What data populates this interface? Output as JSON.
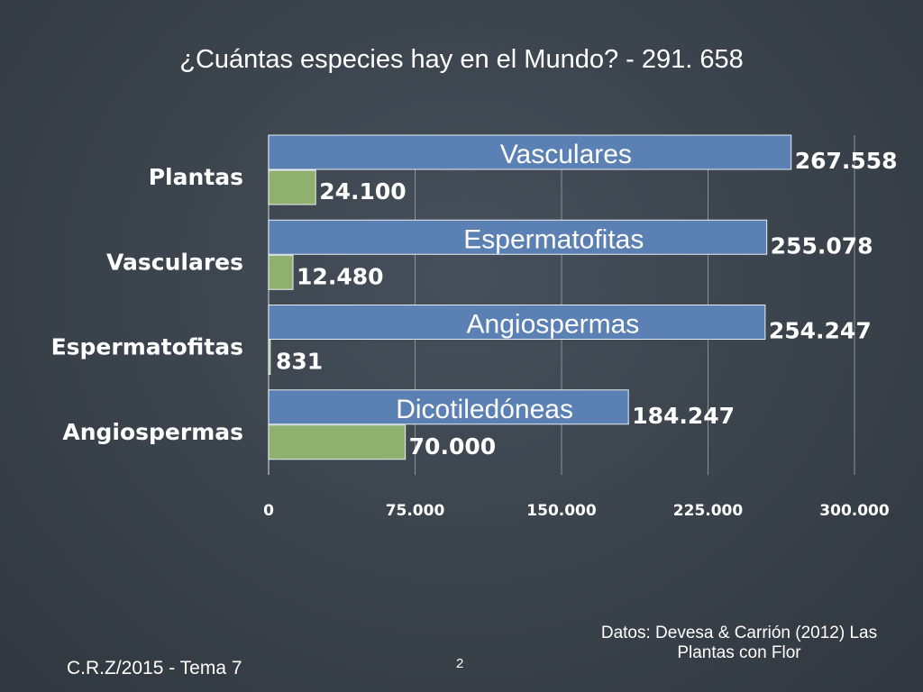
{
  "title": "¿Cuántas especies hay en el Mundo? - 291. 658",
  "footer": {
    "left": "C.R.Z/2015 - Tema 7",
    "page": "2",
    "source": "Datos: Devesa & Carrión (2012) Las Plantas con Flor"
  },
  "colors": {
    "blue": "#5b80b4",
    "green": "#8fb06e",
    "grid": "#8c9299",
    "axis": "#a6abb0"
  },
  "chart_data": {
    "type": "bar",
    "orientation": "horizontal",
    "categories": [
      "Plantas",
      "Vasculares",
      "Espermatofitas",
      "Angiospermas"
    ],
    "series": [
      {
        "color": "#5b80b4",
        "values": [
          267558,
          255078,
          254247,
          184247
        ],
        "value_labels": [
          "267.558",
          "255.078",
          "254.247",
          "184.247"
        ],
        "inner_labels": [
          "Vasculares",
          "Espermatofitas",
          "Angiospermas",
          "Dicotiledóneas"
        ]
      },
      {
        "color": "#8fb06e",
        "values": [
          24100,
          12480,
          831,
          70000
        ],
        "value_labels": [
          "24.100",
          "12.480",
          "831",
          "70.000"
        ]
      }
    ],
    "xlim": [
      0,
      300000
    ],
    "xticks": [
      0,
      75000,
      150000,
      225000,
      300000
    ],
    "xtick_labels": [
      "0",
      "75.000",
      "150.000",
      "225.000",
      "300.000"
    ],
    "grid": true,
    "legend": "none"
  }
}
